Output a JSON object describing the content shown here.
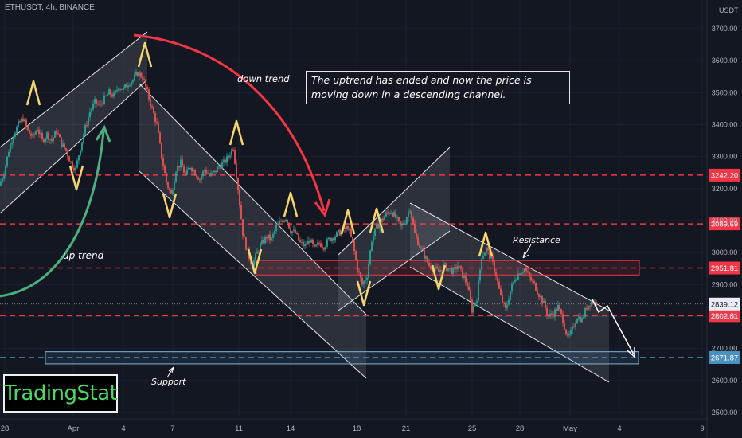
{
  "header": {
    "symbol_info": "ETHUSDT, 4h, BINANCE",
    "currency": "USDT"
  },
  "annotations": {
    "note": "The uptrend has ended and now the price is moving down in a descending channel.",
    "down_trend": "down trend",
    "up_trend": "up trend",
    "resistance": "Resistance",
    "support": "Support"
  },
  "logo_text": "TradingStat",
  "colors": {
    "background": "#131722",
    "candle_up": "#26a69a",
    "candle_down": "#ef5350",
    "level_line": "#f23645",
    "support_line": "#4a90c0",
    "marker": "#f5d76e",
    "down_arrow": "#f23645",
    "up_arrow": "#4caf80"
  },
  "chart_data": {
    "type": "candlestick",
    "y_axis_ticks": [
      3700,
      3600,
      3500,
      3400,
      3300,
      3200,
      3100,
      3000,
      2900,
      2800,
      2700,
      2600,
      2500
    ],
    "ylim": [
      2500,
      3720
    ],
    "x_axis_ticks": [
      "28",
      "Apr",
      "4",
      "7",
      "11",
      "14",
      "18",
      "21",
      "25",
      "28",
      "May",
      "4",
      "9"
    ],
    "levels": [
      {
        "label": "3242.20",
        "value": 3242.2,
        "kind": "resistance"
      },
      {
        "label": "3089.69",
        "value": 3089.69,
        "kind": "resistance"
      },
      {
        "label": "2951.81",
        "value": 2951.81,
        "kind": "resistance"
      },
      {
        "label": "2802.81",
        "value": 2802.81,
        "kind": "resistance"
      },
      {
        "label": "2671.87",
        "value": 2671.87,
        "kind": "support"
      }
    ],
    "current_price": {
      "label": "2839.12",
      "value": 2839.12
    },
    "price_path": [
      [
        0,
        3210
      ],
      [
        6,
        3250
      ],
      [
        12,
        3320
      ],
      [
        18,
        3370
      ],
      [
        24,
        3400
      ],
      [
        30,
        3420
      ],
      [
        36,
        3380
      ],
      [
        42,
        3360
      ],
      [
        48,
        3390
      ],
      [
        54,
        3350
      ],
      [
        60,
        3370
      ],
      [
        66,
        3350
      ],
      [
        72,
        3380
      ],
      [
        78,
        3340
      ],
      [
        84,
        3320
      ],
      [
        90,
        3280
      ],
      [
        96,
        3260
      ],
      [
        102,
        3330
      ],
      [
        108,
        3390
      ],
      [
        114,
        3440
      ],
      [
        120,
        3470
      ],
      [
        126,
        3460
      ],
      [
        132,
        3480
      ],
      [
        138,
        3500
      ],
      [
        144,
        3490
      ],
      [
        150,
        3520
      ],
      [
        156,
        3510
      ],
      [
        162,
        3530
      ],
      [
        168,
        3540
      ],
      [
        174,
        3560
      ],
      [
        180,
        3550
      ],
      [
        186,
        3500
      ],
      [
        192,
        3450
      ],
      [
        198,
        3400
      ],
      [
        204,
        3300
      ],
      [
        210,
        3220
      ],
      [
        216,
        3180
      ],
      [
        222,
        3260
      ],
      [
        228,
        3280
      ],
      [
        234,
        3240
      ],
      [
        240,
        3270
      ],
      [
        246,
        3250
      ],
      [
        252,
        3230
      ],
      [
        258,
        3260
      ],
      [
        264,
        3240
      ],
      [
        270,
        3250
      ],
      [
        276,
        3270
      ],
      [
        282,
        3280
      ],
      [
        288,
        3300
      ],
      [
        294,
        3330
      ],
      [
        300,
        3200
      ],
      [
        306,
        3060
      ],
      [
        312,
        3000
      ],
      [
        318,
        2960
      ],
      [
        324,
        3000
      ],
      [
        330,
        3030
      ],
      [
        336,
        3050
      ],
      [
        342,
        3040
      ],
      [
        348,
        3080
      ],
      [
        354,
        3100
      ],
      [
        360,
        3110
      ],
      [
        366,
        3070
      ],
      [
        372,
        3060
      ],
      [
        378,
        3030
      ],
      [
        384,
        3020
      ],
      [
        390,
        3040
      ],
      [
        396,
        3010
      ],
      [
        402,
        3030
      ],
      [
        408,
        3020
      ],
      [
        414,
        3040
      ],
      [
        420,
        3050
      ],
      [
        426,
        3060
      ],
      [
        432,
        3070
      ],
      [
        438,
        3080
      ],
      [
        444,
        3030
      ],
      [
        450,
        2950
      ],
      [
        456,
        2900
      ],
      [
        462,
        2930
      ],
      [
        468,
        3040
      ],
      [
        474,
        3080
      ],
      [
        480,
        3100
      ],
      [
        486,
        3120
      ],
      [
        492,
        3130
      ],
      [
        498,
        3110
      ],
      [
        504,
        3080
      ],
      [
        510,
        3100
      ],
      [
        516,
        3140
      ],
      [
        522,
        3060
      ],
      [
        528,
        3020
      ],
      [
        534,
        2990
      ],
      [
        540,
        2960
      ],
      [
        546,
        2950
      ],
      [
        552,
        2940
      ],
      [
        558,
        2960
      ],
      [
        564,
        2950
      ],
      [
        570,
        2940
      ],
      [
        576,
        2960
      ],
      [
        582,
        2930
      ],
      [
        588,
        2900
      ],
      [
        594,
        2820
      ],
      [
        600,
        2860
      ],
      [
        606,
        2990
      ],
      [
        612,
        3010
      ],
      [
        618,
        2980
      ],
      [
        624,
        2930
      ],
      [
        630,
        2860
      ],
      [
        636,
        2820
      ],
      [
        642,
        2880
      ],
      [
        648,
        2920
      ],
      [
        654,
        2940
      ],
      [
        660,
        2950
      ],
      [
        666,
        2920
      ],
      [
        672,
        2900
      ],
      [
        678,
        2870
      ],
      [
        684,
        2840
      ],
      [
        690,
        2800
      ],
      [
        696,
        2810
      ],
      [
        702,
        2830
      ],
      [
        708,
        2790
      ],
      [
        714,
        2730
      ],
      [
        720,
        2760
      ],
      [
        726,
        2800
      ],
      [
        732,
        2790
      ],
      [
        738,
        2830
      ],
      [
        744,
        2850
      ],
      [
        750,
        2839
      ]
    ]
  }
}
